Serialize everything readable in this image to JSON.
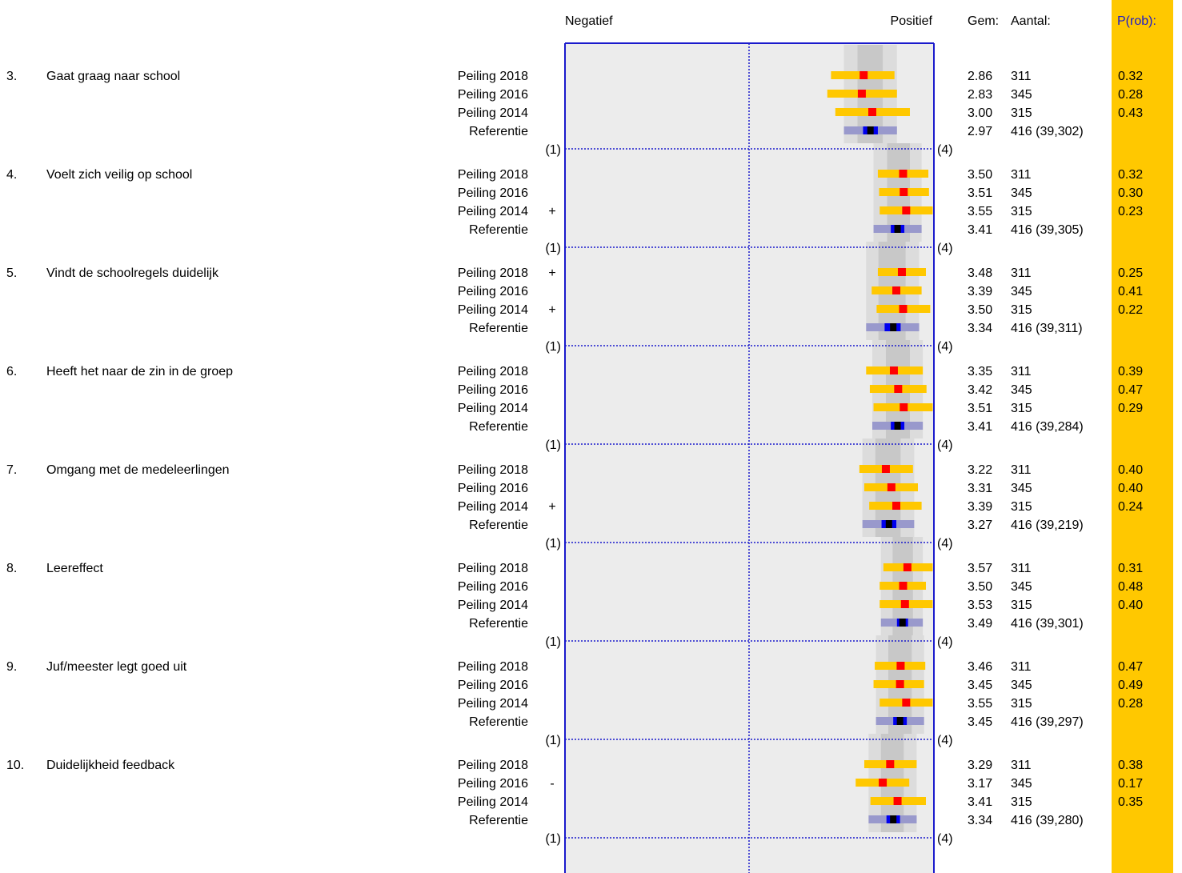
{
  "chart_data": {
    "type": "interval",
    "header": {
      "negative": "Negatief",
      "positive": "Positief",
      "mean": "Gem:",
      "count": "Aantal:",
      "prob": "P(rob):"
    },
    "scale": {
      "min": 1,
      "max": 4,
      "min_label": "(1)",
      "max_label": "(4)"
    },
    "colors": {
      "panel_bg": "#ececec",
      "band_light": "#dcdcdc",
      "band_dark": "#c8c8c8",
      "frame": "#1a1acc",
      "sample_bar": "#ffc800",
      "sample_marker": "#ff0000",
      "ref_bar_outer": "#9999cc",
      "ref_bar_inner": "#0000ee",
      "ref_marker": "#000000",
      "prob_column": "#ffc800",
      "prob_text": "#1a1acc"
    },
    "items": [
      {
        "number": "3.",
        "label": "Gaat graag naar school",
        "rows": [
          {
            "name": "Peiling 2018",
            "sign": "",
            "mean": "2.86",
            "count": "311",
            "prob": "0.32",
            "lo": 2.33,
            "hi": 3.36
          },
          {
            "name": "Peiling 2016",
            "sign": "",
            "mean": "2.83",
            "count": "345",
            "prob": "0.28",
            "lo": 2.27,
            "hi": 3.4
          },
          {
            "name": "Peiling 2014",
            "sign": "",
            "mean": "3.00",
            "count": "315",
            "prob": "0.43",
            "lo": 2.4,
            "hi": 3.61
          },
          {
            "name": "Referentie",
            "sign": "",
            "mean": "2.97",
            "count": "416 (39,302)",
            "ref_lo": 2.54,
            "ref_hi": 3.4,
            "ref_in_lo": 2.85,
            "ref_in_hi": 3.09
          }
        ],
        "band": {
          "lo": 2.54,
          "q1": 2.76,
          "q3": 3.17,
          "hi": 3.4
        }
      },
      {
        "number": "4.",
        "label": "Voelt zich veilig op school",
        "rows": [
          {
            "name": "Peiling 2018",
            "sign": "",
            "mean": "3.50",
            "count": "311",
            "prob": "0.32",
            "lo": 3.09,
            "hi": 3.91
          },
          {
            "name": "Peiling 2016",
            "sign": "",
            "mean": "3.51",
            "count": "345",
            "prob": "0.30",
            "lo": 3.11,
            "hi": 3.92
          },
          {
            "name": "Peiling 2014",
            "sign": "+",
            "mean": "3.55",
            "count": "315",
            "prob": "0.23",
            "lo": 3.12,
            "hi": 3.98
          },
          {
            "name": "Referentie",
            "sign": "",
            "mean": "3.41",
            "count": "416 (39,305)",
            "ref_lo": 3.02,
            "ref_hi": 3.8,
            "ref_in_lo": 3.3,
            "ref_in_hi": 3.52
          }
        ],
        "band": {
          "lo": 3.02,
          "q1": 3.24,
          "q3": 3.61,
          "hi": 3.8
        }
      },
      {
        "number": "5.",
        "label": "Vindt de schoolregels duidelijk",
        "rows": [
          {
            "name": "Peiling 2018",
            "sign": "+",
            "mean": "3.48",
            "count": "311",
            "prob": "0.25",
            "lo": 3.09,
            "hi": 3.87
          },
          {
            "name": "Peiling 2016",
            "sign": "",
            "mean": "3.39",
            "count": "345",
            "prob": "0.41",
            "lo": 2.99,
            "hi": 3.8
          },
          {
            "name": "Peiling 2014",
            "sign": "+",
            "mean": "3.50",
            "count": "315",
            "prob": "0.22",
            "lo": 3.07,
            "hi": 3.94
          },
          {
            "name": "Referentie",
            "sign": "",
            "mean": "3.34",
            "count": "416 (39,311)",
            "ref_lo": 2.9,
            "ref_hi": 3.76,
            "ref_in_lo": 3.2,
            "ref_in_hi": 3.46
          }
        ],
        "band": {
          "lo": 2.9,
          "q1": 3.1,
          "q3": 3.54,
          "hi": 3.76
        }
      },
      {
        "number": "6.",
        "label": "Heeft het naar de zin in de groep",
        "rows": [
          {
            "name": "Peiling 2018",
            "sign": "",
            "mean": "3.35",
            "count": "311",
            "prob": "0.39",
            "lo": 2.9,
            "hi": 3.82
          },
          {
            "name": "Peiling 2016",
            "sign": "",
            "mean": "3.42",
            "count": "345",
            "prob": "0.47",
            "lo": 2.96,
            "hi": 3.88
          },
          {
            "name": "Peiling 2014",
            "sign": "",
            "mean": "3.51",
            "count": "315",
            "prob": "0.29",
            "lo": 3.02,
            "hi": 3.98
          },
          {
            "name": "Referentie",
            "sign": "",
            "mean": "3.41",
            "count": "416 (39,284)",
            "ref_lo": 3.0,
            "ref_hi": 3.82,
            "ref_in_lo": 3.3,
            "ref_in_hi": 3.52
          }
        ],
        "band": {
          "lo": 3.0,
          "q1": 3.22,
          "q3": 3.61,
          "hi": 3.82
        }
      },
      {
        "number": "7.",
        "label": "Omgang met de medeleerlingen",
        "rows": [
          {
            "name": "Peiling 2018",
            "sign": "",
            "mean": "3.22",
            "count": "311",
            "prob": "0.40",
            "lo": 2.79,
            "hi": 3.66
          },
          {
            "name": "Peiling 2016",
            "sign": "",
            "mean": "3.31",
            "count": "345",
            "prob": "0.40",
            "lo": 2.87,
            "hi": 3.74
          },
          {
            "name": "Peiling 2014",
            "sign": "+",
            "mean": "3.39",
            "count": "315",
            "prob": "0.24",
            "lo": 2.95,
            "hi": 3.8
          },
          {
            "name": "Referentie",
            "sign": "",
            "mean": "3.27",
            "count": "416 (39,219)",
            "ref_lo": 2.84,
            "ref_hi": 3.68,
            "ref_in_lo": 3.15,
            "ref_in_hi": 3.39
          }
        ],
        "band": {
          "lo": 2.84,
          "q1": 3.05,
          "q3": 3.46,
          "hi": 3.68
        }
      },
      {
        "number": "8.",
        "label": "Leereffect",
        "rows": [
          {
            "name": "Peiling 2018",
            "sign": "",
            "mean": "3.57",
            "count": "311",
            "prob": "0.31",
            "lo": 3.18,
            "hi": 3.98
          },
          {
            "name": "Peiling 2016",
            "sign": "",
            "mean": "3.50",
            "count": "345",
            "prob": "0.48",
            "lo": 3.12,
            "hi": 3.87
          },
          {
            "name": "Peiling 2014",
            "sign": "",
            "mean": "3.53",
            "count": "315",
            "prob": "0.40",
            "lo": 3.12,
            "hi": 3.98
          },
          {
            "name": "Referentie",
            "sign": "",
            "mean": "3.49",
            "count": "416 (39,301)",
            "ref_lo": 3.14,
            "ref_hi": 3.82,
            "ref_in_lo": 3.4,
            "ref_in_hi": 3.58
          }
        ],
        "band": {
          "lo": 3.14,
          "q1": 3.33,
          "q3": 3.66,
          "hi": 3.82
        }
      },
      {
        "number": "9.",
        "label": "Juf/meester legt goed uit",
        "rows": [
          {
            "name": "Peiling 2018",
            "sign": "",
            "mean": "3.46",
            "count": "311",
            "prob": "0.47",
            "lo": 3.04,
            "hi": 3.86
          },
          {
            "name": "Peiling 2016",
            "sign": "",
            "mean": "3.45",
            "count": "345",
            "prob": "0.49",
            "lo": 3.02,
            "hi": 3.84
          },
          {
            "name": "Peiling 2014",
            "sign": "",
            "mean": "3.55",
            "count": "315",
            "prob": "0.28",
            "lo": 3.12,
            "hi": 3.98
          },
          {
            "name": "Referentie",
            "sign": "",
            "mean": "3.45",
            "count": "416 (39,297)",
            "ref_lo": 3.06,
            "ref_hi": 3.84,
            "ref_in_lo": 3.34,
            "ref_in_hi": 3.56
          }
        ],
        "band": {
          "lo": 3.06,
          "q1": 3.26,
          "q3": 3.64,
          "hi": 3.84
        }
      },
      {
        "number": "10.",
        "label": "Duidelijkheid feedback",
        "rows": [
          {
            "name": "Peiling 2018",
            "sign": "",
            "mean": "3.29",
            "count": "311",
            "prob": "0.38",
            "lo": 2.87,
            "hi": 3.72
          },
          {
            "name": "Peiling 2016",
            "sign": "-",
            "mean": "3.17",
            "count": "345",
            "prob": "0.17",
            "lo": 2.73,
            "hi": 3.6
          },
          {
            "name": "Peiling 2014",
            "sign": "",
            "mean": "3.41",
            "count": "315",
            "prob": "0.35",
            "lo": 2.97,
            "hi": 3.87
          },
          {
            "name": "Referentie",
            "sign": "",
            "mean": "3.34",
            "count": "416 (39,280)",
            "ref_lo": 2.94,
            "ref_hi": 3.72,
            "ref_in_lo": 3.23,
            "ref_in_hi": 3.45
          }
        ],
        "band": {
          "lo": 2.94,
          "q1": 3.14,
          "q3": 3.51,
          "hi": 3.72
        }
      }
    ]
  }
}
